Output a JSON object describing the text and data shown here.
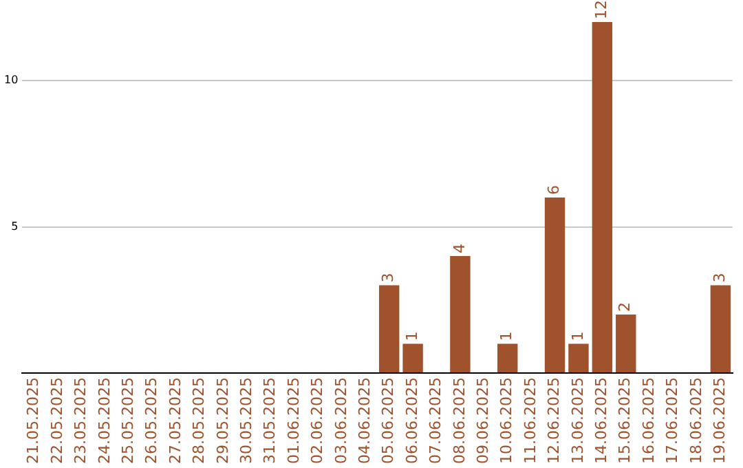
{
  "chart_data": {
    "type": "bar",
    "categories": [
      "21.05.2025",
      "22.05.2025",
      "23.05.2025",
      "24.05.2025",
      "25.05.2025",
      "26.05.2025",
      "27.05.2025",
      "28.05.2025",
      "29.05.2025",
      "30.05.2025",
      "31.05.2025",
      "01.06.2025",
      "02.06.2025",
      "03.06.2025",
      "04.06.2025",
      "05.06.2025",
      "06.06.2025",
      "07.06.2025",
      "08.06.2025",
      "09.06.2025",
      "10.06.2025",
      "11.06.2025",
      "12.06.2025",
      "13.06.2025",
      "14.06.2025",
      "15.06.2025",
      "16.06.2025",
      "17.06.2025",
      "18.06.2025",
      "19.06.2025"
    ],
    "values": [
      0,
      0,
      0,
      0,
      0,
      0,
      0,
      0,
      0,
      0,
      0,
      0,
      0,
      0,
      0,
      3,
      1,
      0,
      4,
      0,
      1,
      0,
      6,
      1,
      12,
      2,
      0,
      0,
      0,
      3
    ],
    "value_labels": [
      null,
      null,
      null,
      null,
      null,
      null,
      null,
      null,
      null,
      null,
      null,
      null,
      null,
      null,
      null,
      "3",
      "1",
      null,
      "4",
      null,
      "1",
      null,
      "6",
      "1",
      "12",
      "2",
      null,
      null,
      null,
      "3"
    ],
    "color": "#a0522d",
    "ylim": [
      0,
      12
    ],
    "yticks": [
      {
        "value": 0,
        "label": null
      },
      5,
      10
    ],
    "grid": "y",
    "legend": false
  }
}
